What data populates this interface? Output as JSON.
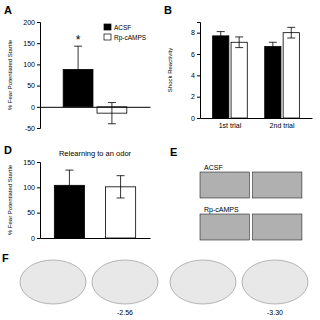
{
  "chart_data": [
    {
      "type": "bar",
      "ylabel": "% Fear Potentiated Startle",
      "categories": [
        null
      ],
      "series": [
        {
          "name": "ACSF",
          "color": "black",
          "values": [
            88
          ],
          "errors": [
            55
          ]
        },
        {
          "name": "Rp-cAMPS",
          "color": "white",
          "values": [
            -15
          ],
          "errors": [
            25
          ]
        }
      ],
      "ylim": [
        -50,
        200
      ],
      "yticks": [
        -50,
        0,
        50,
        100,
        150,
        200
      ],
      "legend": "upper right",
      "annotations": [
        {
          "text": "A"
        },
        {
          "text": "*",
          "y": 148
        }
      ]
    },
    {
      "type": "bar",
      "ylabel": "Shock Reactivity",
      "categories": [
        "1st trial",
        "2nd trial"
      ],
      "series": [
        {
          "color": "black",
          "values": [
            7.7,
            6.7
          ],
          "errors": [
            0.4,
            0.4
          ]
        },
        {
          "color": "white",
          "values": [
            7.1,
            8.0
          ],
          "errors": [
            0.5,
            0.5
          ]
        }
      ],
      "ylim": [
        0,
        9
      ],
      "yticks": [
        0,
        2,
        4,
        6,
        8
      ],
      "annotations": [
        {
          "text": "B"
        }
      ]
    },
    {
      "type": "bar",
      "title": "Relearning to an odor",
      "ylabel": "% Fear Potentiated Startle",
      "categories": [
        null,
        null
      ],
      "values": [
        104,
        101
      ],
      "errors": [
        30,
        22
      ],
      "colors": [
        "black",
        "white"
      ],
      "ylim": [
        0,
        150
      ],
      "yticks": [
        0,
        50,
        100,
        150
      ],
      "annotations": [
        {
          "text": "D"
        }
      ]
    },
    {
      "type": "images",
      "annotations": [
        {
          "text": "E"
        },
        {
          "text": "ACSF"
        },
        {
          "text": "Rp-cAMPS"
        }
      ]
    },
    {
      "type": "diagram",
      "annotations": [
        {
          "text": "F"
        },
        {
          "text": "-2.56"
        },
        {
          "text": "-3.30"
        }
      ]
    }
  ]
}
